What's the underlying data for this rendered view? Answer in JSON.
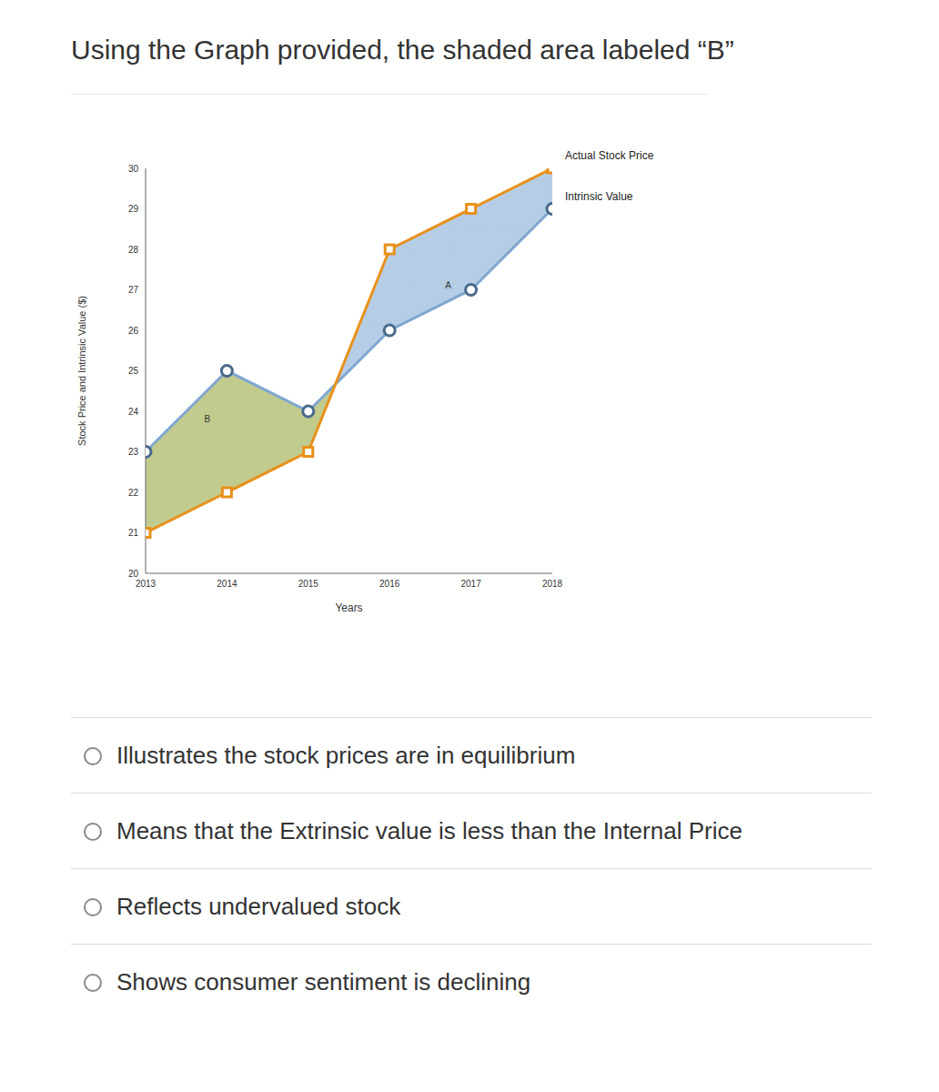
{
  "question": "Using the Graph provided, the shaded area labeled “B”",
  "chart_data": {
    "type": "line",
    "x": [
      2013,
      2014,
      2015,
      2016,
      2017,
      2018
    ],
    "series": [
      {
        "name": "Actual Stock Price",
        "color": "#e8901a",
        "marker": "square",
        "values": [
          21,
          22,
          23,
          28,
          29,
          30
        ]
      },
      {
        "name": "Intrinsic Value",
        "color": "#7ea6d0",
        "marker": "circle",
        "values": [
          23,
          25,
          24,
          26,
          27,
          29
        ]
      }
    ],
    "x_label": "Years",
    "y_label": "Stock Price and Intrinsic Value ($)",
    "xlim": [
      2013,
      2018
    ],
    "xticks": [
      2013,
      2014,
      2015,
      2016,
      2017,
      2018
    ],
    "ylim": [
      20,
      30
    ],
    "yticks": [
      20,
      21,
      22,
      23,
      24,
      25,
      26,
      27,
      28,
      29,
      30
    ],
    "annotations": [
      {
        "text": "A",
        "x": 2016.72,
        "y": 27.1
      },
      {
        "text": "B",
        "x": 2013.76,
        "y": 23.8
      }
    ]
  },
  "options": [
    "Illustrates the stock prices are in equilibrium",
    "Means that the Extrinsic value is less than the Internal Price",
    "Reflects undervalued stock",
    "Shows consumer sentiment is declining"
  ]
}
